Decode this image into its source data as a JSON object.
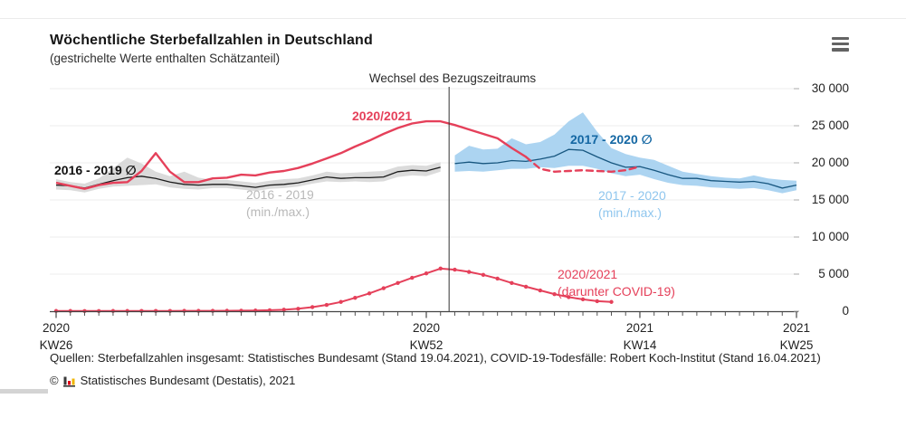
{
  "header": {
    "title": "Wöchentliche Sterbefallzahlen in Deutschland",
    "subtitle": "(gestrichelte Werte enthalten Schätzanteil)"
  },
  "chart": {
    "annotation_label": "Wechsel des Bezugszeitraums",
    "series_labels": {
      "avg_2016_2019": "2016 - 2019 ∅",
      "minmax_2016_2019_line1": "2016 - 2019",
      "minmax_2016_2019_line2": "(min./max.)",
      "total_2020_2021": "2020/2021",
      "avg_2017_2020": "2017 - 2020 ∅",
      "minmax_2017_2020_line1": "2017 - 2020",
      "minmax_2017_2020_line2": "(min./max.)",
      "covid_line1": "2020/2021",
      "covid_line2": "(darunter COVID-19)"
    }
  },
  "chart_data": {
    "type": "line",
    "title": "Wöchentliche Sterbefallzahlen in Deutschland",
    "subtitle": "(gestrichelte Werte enthalten Schätzanteil)",
    "x_axis": {
      "unit": "Kalenderwoche",
      "start": "2020 KW26",
      "end": "2021 KW25",
      "n_points": 53,
      "labeled_ticks": [
        {
          "index": 0,
          "line1": "2020",
          "line2": "KW26"
        },
        {
          "index": 26,
          "line1": "2020",
          "line2": "KW52"
        },
        {
          "index": 41,
          "line1": "2021",
          "line2": "KW14"
        },
        {
          "index": 52,
          "line1": "2021",
          "line2": "KW25"
        }
      ]
    },
    "y_axis": {
      "min": 0,
      "max": 30000,
      "tick_values": [
        0,
        5000,
        10000,
        15000,
        20000,
        25000,
        30000
      ],
      "tick_labels": [
        "0",
        "5 000",
        "10 000",
        "15 000",
        "20 000",
        "25 000",
        "30 000"
      ]
    },
    "reference_line": {
      "index": 27.6,
      "label": "Wechsel des Bezugszeitraums"
    },
    "legend_position": "inline-annotations",
    "grid": true,
    "series": [
      {
        "name": "2016 - 2019 ∅",
        "role": "average-line",
        "color": "#1a1a1a",
        "start_index": 0,
        "values": [
          17000,
          16900,
          16600,
          17100,
          17600,
          18000,
          18200,
          17900,
          17400,
          17100,
          17000,
          17100,
          17100,
          16900,
          16700,
          17000,
          17100,
          17300,
          17700,
          18100,
          17900,
          18000,
          18000,
          18100,
          18800,
          19000,
          18900,
          19400
        ]
      },
      {
        "name": "2016 - 2019 min",
        "role": "band-min",
        "color": "#d9d9d9",
        "start_index": 0,
        "values": [
          16400,
          16300,
          16000,
          16500,
          16800,
          16900,
          17000,
          17100,
          16700,
          16500,
          16400,
          16600,
          16600,
          16400,
          16200,
          16500,
          16600,
          16800,
          17200,
          17500,
          17400,
          17500,
          17400,
          17500,
          18100,
          18300,
          18200,
          18800
        ]
      },
      {
        "name": "2016 - 2019 max",
        "role": "band-max",
        "color": "#d9d9d9",
        "start_index": 0,
        "values": [
          17800,
          17400,
          17200,
          17900,
          19300,
          20700,
          19900,
          18800,
          18200,
          18800,
          18000,
          17700,
          17700,
          17500,
          17300,
          17600,
          17800,
          17900,
          18300,
          18800,
          18600,
          18700,
          18800,
          18900,
          19500,
          19700,
          19600,
          20100
        ]
      },
      {
        "name": "2017 - 2020 ∅",
        "role": "average-line",
        "color": "#17567f",
        "start_index": 28,
        "values": [
          19900,
          20100,
          19900,
          20000,
          20300,
          20200,
          20500,
          20900,
          21800,
          21700,
          20800,
          20000,
          19400,
          19500,
          19000,
          18400,
          17900,
          17900,
          17600,
          17500,
          17400,
          17500,
          17200,
          16600,
          17000
        ]
      },
      {
        "name": "2017 - 2020 min",
        "role": "band-min",
        "color": "#a8d2f0",
        "start_index": 28,
        "values": [
          18800,
          18900,
          18800,
          19000,
          19200,
          19200,
          19400,
          19300,
          19600,
          19600,
          19200,
          18600,
          18200,
          18400,
          17800,
          17300,
          17000,
          16900,
          16700,
          16600,
          16500,
          16600,
          16300,
          15900,
          16300
        ]
      },
      {
        "name": "2017 - 2020 max",
        "role": "band-max",
        "color": "#a8d2f0",
        "start_index": 28,
        "values": [
          21000,
          22300,
          21800,
          21900,
          23300,
          22500,
          22800,
          23800,
          25600,
          26800,
          24200,
          22000,
          21200,
          20700,
          20400,
          19600,
          18800,
          18500,
          18200,
          18000,
          17900,
          18300,
          17900,
          17700,
          17600
        ]
      },
      {
        "name": "2020/2021",
        "role": "main-line",
        "color": "#e5405a",
        "start_index": 0,
        "dashed_from_index": 33,
        "values": [
          17300,
          16900,
          16500,
          17000,
          17300,
          17400,
          18900,
          21300,
          18800,
          17400,
          17400,
          17900,
          18000,
          18400,
          18300,
          18700,
          18900,
          19300,
          19900,
          20600,
          21300,
          22200,
          23000,
          23900,
          24700,
          25300,
          25600,
          25600,
          25100,
          24500,
          23900,
          23300,
          22000,
          20800,
          19200,
          18800,
          18900,
          19000,
          18900,
          18800,
          19000,
          19500
        ]
      },
      {
        "name": "2020/2021 (darunter COVID-19)",
        "role": "marker-line",
        "color": "#e5405a",
        "start_index": 0,
        "markers": true,
        "values": [
          30,
          30,
          25,
          25,
          30,
          30,
          35,
          40,
          40,
          45,
          45,
          50,
          60,
          70,
          90,
          130,
          200,
          330,
          550,
          850,
          1250,
          1800,
          2400,
          3100,
          3800,
          4500,
          5100,
          5750,
          5600,
          5300,
          4900,
          4400,
          3800,
          3300,
          2800,
          2300,
          1900,
          1600,
          1350,
          1250
        ]
      }
    ]
  },
  "footer": {
    "sources": "Quellen: Sterbefallzahlen insgesamt: Statistisches Bundesamt (Stand 19.04.2021), COVID-19-Todesfälle: Robert Koch-Institut (Stand 16.04.2021)",
    "copyright_prefix": "©",
    "copyright_text": "Statistisches Bundesamt (Destatis), 2021"
  },
  "colors": {
    "red": "#e5405a",
    "black_line": "#1a1a1a",
    "gray_band": "#d9d9d9",
    "gray_label": "#b9b9b9",
    "blue_line": "#17567f",
    "blue_label": "#1467a3",
    "blue_band": "#a8d2f0",
    "light_blue_label": "#8fc6ee",
    "grid": "#ececec",
    "axis": "#444444",
    "reference_line": "#333333"
  }
}
